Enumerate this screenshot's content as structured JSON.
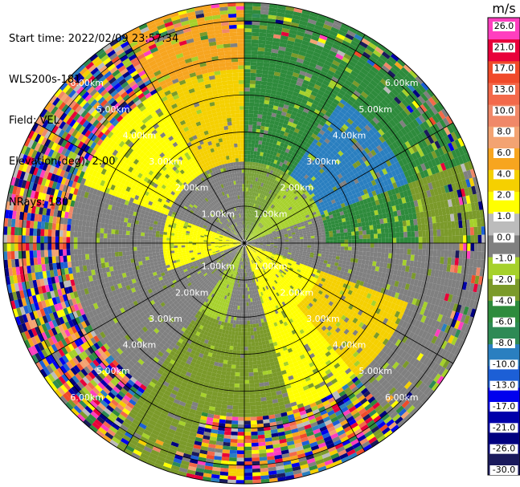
{
  "header": {
    "start_time": "Start time: 2022/02/09 23:57:34",
    "instrument": "WLS200s-181",
    "field": "Field: VEL",
    "elevation": "Elevation(deg): 2.00",
    "nrays": "NRays: 180"
  },
  "chart_data": {
    "type": "heatmap",
    "projection": "polar-ppi",
    "range_rings_km": [
      1,
      2,
      3,
      4,
      5,
      6
    ],
    "ring_labels": [
      "1.00km",
      "2.00km",
      "3.00km",
      "4.00km",
      "5.00km",
      "6.00km"
    ],
    "max_range_km": 6.5,
    "spokes_deg": [
      0,
      30,
      60,
      90,
      120,
      150,
      180,
      210,
      240,
      270,
      300,
      330
    ],
    "colorbar": {
      "unit": "m/s",
      "ticks": [
        "26.0",
        "21.0",
        "17.0",
        "13.0",
        "10.0",
        "8.0",
        "6.0",
        "4.0",
        "2.0",
        "1.0",
        "0.0",
        "-1.0",
        "-2.0",
        "-4.0",
        "-6.0",
        "-8.0",
        "-10.0",
        "-13.0",
        "-17.0",
        "-21.0",
        "-26.0",
        "-30.0"
      ],
      "bins": [
        {
          "color": "#ff3fbf"
        },
        {
          "color": "#e8003a"
        },
        {
          "color": "#f04a2a"
        },
        {
          "color": "#f3694a"
        },
        {
          "color": "#f08868"
        },
        {
          "color": "#f3a372"
        },
        {
          "color": "#f7a51f"
        },
        {
          "color": "#f5d000"
        },
        {
          "color": "#ffff00"
        },
        {
          "color": "#bcbcbc"
        },
        {
          "color": "#808080"
        },
        {
          "color": "#a6d12b"
        },
        {
          "color": "#7b9a2a"
        },
        {
          "color": "#2e8b3c"
        },
        {
          "color": "#2e8a55"
        },
        {
          "color": "#2a7fc0"
        },
        {
          "color": "#1c5fd6"
        },
        {
          "color": "#0000ee"
        },
        {
          "color": "#0000aa"
        },
        {
          "color": "#000080"
        },
        {
          "color": "#1a1a5c"
        }
      ]
    },
    "sectors": [
      {
        "from_deg": 0,
        "to_deg": 35,
        "inner": "#7aa33a",
        "mid": "#2e8b3c",
        "outer": "#2e8b3c"
      },
      {
        "from_deg": 35,
        "to_deg": 70,
        "inner": "#a6d12b",
        "mid": "#2a7fc0",
        "outer": "#2e8b3c"
      },
      {
        "from_deg": 70,
        "to_deg": 90,
        "inner": "#808080",
        "mid": "#2e8b3c",
        "outer": "#7b9a2a"
      },
      {
        "from_deg": 90,
        "to_deg": 110,
        "inner": "#808080",
        "mid": "#808080",
        "outer": "#808080"
      },
      {
        "from_deg": 110,
        "to_deg": 140,
        "inner": "#ffff00",
        "mid": "#f5d000",
        "outer": "#808080"
      },
      {
        "from_deg": 140,
        "to_deg": 165,
        "inner": "#ffff00",
        "mid": "#ffff00",
        "outer": "noise"
      },
      {
        "from_deg": 165,
        "to_deg": 195,
        "inner": "#808080",
        "mid": "#7b9a2a",
        "outer": "noise"
      },
      {
        "from_deg": 195,
        "to_deg": 215,
        "inner": "#a6d12b",
        "mid": "#7b9a2a",
        "outer": "#7b9a2a"
      },
      {
        "from_deg": 215,
        "to_deg": 250,
        "inner": "#808080",
        "mid": "#808080",
        "outer": "noise"
      },
      {
        "from_deg": 250,
        "to_deg": 290,
        "inner": "#ffff00",
        "mid": "#808080",
        "outer": "noise"
      },
      {
        "from_deg": 290,
        "to_deg": 330,
        "inner": "#808080",
        "mid": "#ffff00",
        "outer": "noise"
      },
      {
        "from_deg": 330,
        "to_deg": 360,
        "inner": "#808080",
        "mid": "#f5d000",
        "outer": "#f7a51f"
      }
    ]
  }
}
